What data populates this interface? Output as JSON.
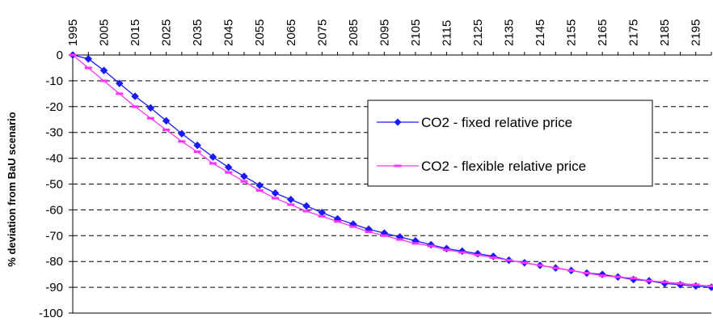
{
  "chart_data": {
    "type": "line",
    "title": "",
    "xlabel": "",
    "ylabel": "% deviation from BaU scenario",
    "x_tick_labels": [
      "1995",
      "2005",
      "2015",
      "2025",
      "2035",
      "2045",
      "2055",
      "2065",
      "2075",
      "2085",
      "2095",
      "2105",
      "2115",
      "2125",
      "2135",
      "2145",
      "2155",
      "2165",
      "2175",
      "2185",
      "2195"
    ],
    "y_tick_labels": [
      "0",
      "-10",
      "-20",
      "-30",
      "-40",
      "-50",
      "-60",
      "-70",
      "-80",
      "-90",
      "-100"
    ],
    "xlim": [
      1995,
      2200
    ],
    "ylim": [
      -100,
      0
    ],
    "grid": "horizontal dashed",
    "legend_position": "center-right",
    "x": [
      1995,
      2000,
      2005,
      2010,
      2015,
      2020,
      2025,
      2030,
      2035,
      2040,
      2045,
      2050,
      2055,
      2060,
      2065,
      2070,
      2075,
      2080,
      2085,
      2090,
      2095,
      2100,
      2105,
      2110,
      2115,
      2120,
      2125,
      2130,
      2135,
      2140,
      2145,
      2150,
      2155,
      2160,
      2165,
      2170,
      2175,
      2180,
      2185,
      2190,
      2195,
      2200
    ],
    "series": [
      {
        "name": "CO2 - fixed relative price",
        "color": "#1a1aff",
        "marker": "diamond",
        "values": [
          0,
          -1.5,
          -6,
          -11,
          -16,
          -20.5,
          -25.5,
          -30.5,
          -35,
          -39.5,
          -43.5,
          -47,
          -50.5,
          -53.5,
          -56,
          -58.5,
          -61,
          -63.5,
          -65.5,
          -67.5,
          -69,
          -70.5,
          -72,
          -73.5,
          -75,
          -76,
          -77,
          -78,
          -79.5,
          -80.5,
          -81.5,
          -82.5,
          -83.5,
          -84.5,
          -85,
          -86,
          -87,
          -87.5,
          -88.5,
          -89,
          -89.5,
          -90
        ]
      },
      {
        "name": "CO2 - flexible relative price",
        "color": "#ff33ff",
        "marker": "dash",
        "values": [
          0,
          -5,
          -10,
          -15,
          -20,
          -24.5,
          -29,
          -33.5,
          -37.5,
          -42,
          -45.5,
          -49,
          -52.5,
          -55.5,
          -58,
          -60.5,
          -62.5,
          -64.5,
          -66.5,
          -68.5,
          -70,
          -71.5,
          -73,
          -74,
          -75.5,
          -76.5,
          -77.5,
          -78.5,
          -79.5,
          -80.5,
          -81.5,
          -82.5,
          -83.5,
          -84.5,
          -85.5,
          -86,
          -86.5,
          -87.5,
          -88,
          -88.5,
          -89,
          -89.5
        ]
      }
    ]
  }
}
